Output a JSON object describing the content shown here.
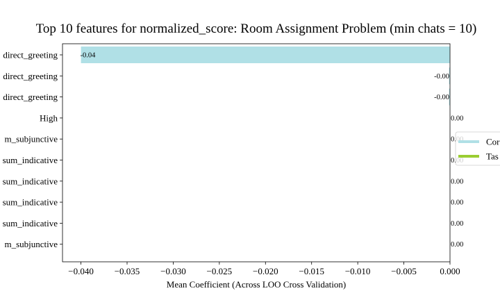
{
  "chart_data": {
    "type": "bar",
    "orientation": "horizontal",
    "title": "Top 10 features for normalized_score: Room Assignment Problem (min chats = 10)",
    "xlabel": "Mean Coefficient (Across LOO Cross Validation)",
    "ylabel": "",
    "xlim": [
      -0.042,
      0.0
    ],
    "xticks": [
      -0.04,
      -0.035,
      -0.03,
      -0.025,
      -0.02,
      -0.015,
      -0.01,
      -0.005,
      0.0
    ],
    "xtick_labels": [
      "−0.040",
      "−0.035",
      "−0.030",
      "−0.025",
      "−0.020",
      "−0.015",
      "−0.010",
      "−0.005",
      "0.000"
    ],
    "grid": false,
    "legend_position": "center-right, partially clipped",
    "categories": [
      "direct_greeting",
      "direct_greeting",
      "direct_greeting",
      "High",
      "m_subjunctive",
      "sum_indicative",
      "sum_indicative",
      "sum_indicative",
      "sum_indicative",
      "m_subjunctive"
    ],
    "series": [
      {
        "name": "Cor",
        "color": "#b0e0e6",
        "values": [
          -0.04,
          -0.0001,
          -0.0001,
          0.0,
          0.0,
          0.0,
          0.0,
          0.0,
          0.0,
          0.0
        ],
        "data_labels": [
          "-0.04",
          "-0.00",
          "-0.00",
          "0.00",
          "0.00",
          "0.00",
          "0.00",
          "0.00",
          "0.00",
          "0.00"
        ]
      }
    ],
    "legend_entries": [
      {
        "name": "Cor",
        "color": "#b0e0e6"
      },
      {
        "name": "Tas",
        "color": "#9acd32"
      }
    ]
  }
}
